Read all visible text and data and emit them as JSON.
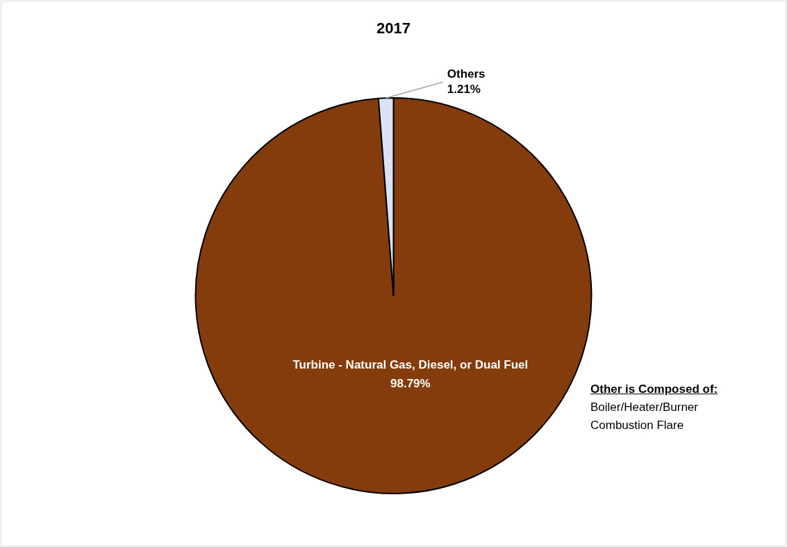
{
  "chart_data": {
    "type": "pie",
    "title": "2017",
    "categories": [
      "Turbine - Natural Gas, Diesel, or Dual Fuel",
      "Others"
    ],
    "values": [
      98.79,
      1.21
    ],
    "colors": [
      "#843c0c",
      "#dae3f3"
    ],
    "value_labels": [
      "98.79%",
      "1.21%"
    ],
    "legend": false,
    "annotations": [
      "Other is Composed of:",
      "Boiler/Heater/Burner",
      "Combustion Flare"
    ]
  }
}
